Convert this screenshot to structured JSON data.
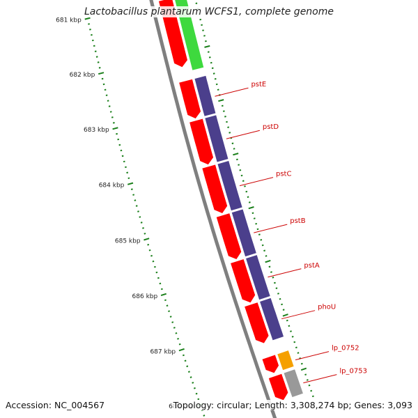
{
  "title": "Lactobacillus plantarum WCFS1, complete genome",
  "accession_text": "Accession: NC_004567",
  "summary_text": "Topology: circular; Length: 3,308,274 bp; Genes: 3,093",
  "colors": {
    "backbone": "#7f7f7f",
    "cds_track": "#ff0000",
    "cog_purple": "#4b3f8c",
    "cog_green": "#3ed93e",
    "cog_orange": "#f5a000",
    "cog_grey": "#999999",
    "tick": "#1a7f1a",
    "gene_label": "#cc0000"
  },
  "ruler": {
    "unit": "kbp",
    "labels": [
      "681 kbp",
      "682 kbp",
      "683 kbp",
      "684 kbp",
      "685 kbp",
      "686 kbp",
      "687 kbp",
      "688 kbp"
    ],
    "start_kbp": 681,
    "end_kbp": 688.6
  },
  "genes": [
    {
      "name": "",
      "start_kbp": 681.0,
      "end_kbp": 682.25,
      "strand": "-",
      "cog": "cog_green"
    },
    {
      "name": "pstE",
      "start_kbp": 682.5,
      "end_kbp": 683.2,
      "strand": "+",
      "cog": "cog_purple"
    },
    {
      "name": "pstD",
      "start_kbp": 683.23,
      "end_kbp": 684.05,
      "strand": "+",
      "cog": "cog_purple"
    },
    {
      "name": "pstC",
      "start_kbp": 684.08,
      "end_kbp": 684.95,
      "strand": "+",
      "cog": "cog_purple"
    },
    {
      "name": "pstB",
      "start_kbp": 684.98,
      "end_kbp": 685.8,
      "strand": "+",
      "cog": "cog_purple"
    },
    {
      "name": "pstA",
      "start_kbp": 685.83,
      "end_kbp": 686.6,
      "strand": "+",
      "cog": "cog_purple"
    },
    {
      "name": "phoU",
      "start_kbp": 686.63,
      "end_kbp": 687.35,
      "strand": "+",
      "cog": "cog_purple"
    },
    {
      "name": "lp_0752",
      "start_kbp": 687.6,
      "end_kbp": 687.9,
      "strand": "+",
      "cog": "cog_orange"
    },
    {
      "name": "lp_0753",
      "start_kbp": 687.95,
      "end_kbp": 688.4,
      "strand": "+",
      "cog": "cog_grey"
    }
  ]
}
